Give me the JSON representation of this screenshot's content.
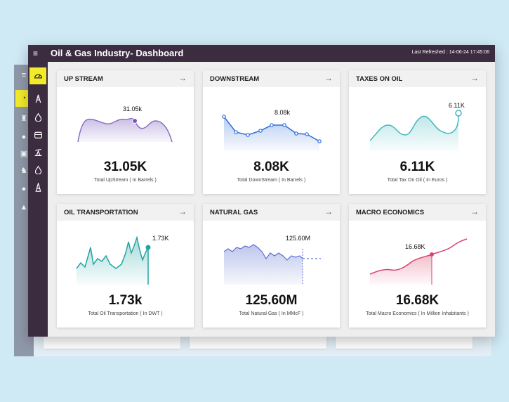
{
  "header": {
    "menu_icon": "menu-icon",
    "title": "Oil & Gas Industry- Dashboard",
    "last_refreshed": "Last Refreshed : 14-06-24  17:45:06"
  },
  "sidebar": {
    "items": [
      {
        "icon": "gauge-icon",
        "active": true
      },
      {
        "icon": "oil-rig-icon"
      },
      {
        "icon": "oil-drop-icon"
      },
      {
        "icon": "oil-tank-icon"
      },
      {
        "icon": "pump-jack-icon"
      },
      {
        "icon": "oil-drop-icon"
      },
      {
        "icon": "tower-icon"
      }
    ]
  },
  "colors": {
    "topbar": "#3c2c40",
    "active_icon_bg": "#f3ea2a",
    "upstream": "#8b6fc4",
    "downstream": "#2f6ed6",
    "taxes": "#3fb7bd",
    "transport": "#24a3a3",
    "natural_gas": "#5c6fd0",
    "macro": "#d9446d"
  },
  "cards": [
    {
      "title": "UP STREAM",
      "value": "31.05K",
      "subtitle": "Total UpStream ( In Barrels )",
      "chart_label": "31.05k",
      "arrow_icon": "arrow-right-icon"
    },
    {
      "title": "DOWNSTREAM",
      "value": "8.08K",
      "subtitle": "Total DownStream ( In Barrels )",
      "chart_label": "8.08k",
      "arrow_icon": "arrow-right-icon"
    },
    {
      "title": "TAXES ON OIL",
      "value": "6.11K",
      "subtitle": "Total Tax On Oil ( In Euros )",
      "chart_label": "6.11K",
      "arrow_icon": "arrow-right-icon"
    },
    {
      "title": "OIL TRANSPORTATION",
      "value": "1.73k",
      "subtitle": "Total Oil Transportation ( In DWT )",
      "chart_label": "1.73K",
      "arrow_icon": "arrow-right-icon"
    },
    {
      "title": "NATURAL GAS",
      "value": "125.60M",
      "subtitle": "Total Natural Gas ( In MMcF )",
      "chart_label": "125.60M",
      "arrow_icon": "arrow-right-icon"
    },
    {
      "title": "MACRO ECONOMICS",
      "value": "16.68K",
      "subtitle": "Total Macro Economics ( In Million Inhabitants )",
      "chart_label": "16.68K",
      "arrow_icon": "arrow-right-icon"
    }
  ]
}
